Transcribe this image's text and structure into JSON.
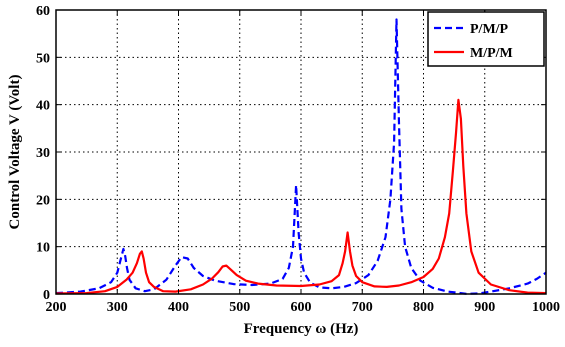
{
  "chart_data": {
    "type": "line",
    "title": "",
    "xlabel": "Frequency ω  (Hz)",
    "ylabel": "Control Voltage  V  (Volt)",
    "xlim": [
      200,
      1000
    ],
    "ylim": [
      0,
      60
    ],
    "xticks": [
      200,
      300,
      400,
      500,
      600,
      700,
      800,
      900,
      1000
    ],
    "yticks": [
      0,
      10,
      20,
      30,
      40,
      50,
      60
    ],
    "grid": true,
    "legend_position": "top-right",
    "series": [
      {
        "name": "P/M/P",
        "color": "#0000ff",
        "style": "dashed",
        "x": [
          200,
          240,
          270,
          290,
          300,
          305,
          310,
          313,
          316,
          320,
          330,
          345,
          360,
          380,
          395,
          405,
          415,
          425,
          440,
          460,
          490,
          520,
          550,
          570,
          580,
          587,
          592,
          596,
          600,
          605,
          615,
          630,
          650,
          670,
          690,
          710,
          725,
          738,
          746,
          752,
          756,
          760,
          764,
          770,
          780,
          795,
          815,
          840,
          870,
          890,
          910,
          940,
          970,
          985,
          1000
        ],
        "y": [
          0.2,
          0.5,
          1.2,
          2.5,
          4.5,
          7,
          9.5,
          8,
          5.5,
          3,
          1.2,
          0.6,
          1,
          3,
          6,
          7.8,
          7.5,
          5.5,
          3.8,
          2.8,
          2.1,
          1.9,
          2.2,
          3.2,
          5.5,
          10,
          23,
          13,
          7.5,
          4.5,
          2.4,
          1.4,
          1.2,
          1.5,
          2.3,
          4,
          7,
          12,
          20,
          32,
          58,
          36,
          18,
          10,
          5.5,
          2.8,
          1.3,
          0.5,
          0.05,
          0.1,
          0.5,
          1.2,
          2.2,
          3.2,
          4.5
        ]
      },
      {
        "name": "M/P/M",
        "color": "#ff0000",
        "style": "solid",
        "x": [
          200,
          250,
          280,
          300,
          315,
          325,
          332,
          337,
          340,
          343,
          347,
          352,
          360,
          375,
          395,
          420,
          440,
          455,
          465,
          472,
          478,
          485,
          495,
          510,
          530,
          560,
          600,
          630,
          650,
          662,
          668,
          672,
          676,
          680,
          684,
          690,
          700,
          720,
          740,
          760,
          780,
          800,
          815,
          825,
          835,
          842,
          848,
          853,
          857,
          861,
          865,
          870,
          878,
          890,
          910,
          940,
          970,
          1000
        ],
        "y": [
          0.1,
          0.2,
          0.6,
          1.5,
          3,
          4.5,
          6.5,
          8.5,
          9,
          7.5,
          4.5,
          2.5,
          1.5,
          0.6,
          0.5,
          1,
          2,
          3.3,
          4.6,
          5.8,
          6,
          5.2,
          4,
          2.8,
          2.2,
          1.8,
          1.7,
          2,
          2.7,
          4,
          6.5,
          9,
          13,
          9,
          6,
          3.8,
          2.5,
          1.6,
          1.5,
          1.8,
          2.5,
          3.6,
          5.3,
          7.5,
          12,
          17,
          26,
          34,
          41,
          37,
          27,
          17,
          9,
          4.5,
          2,
          0.8,
          0.3,
          0.2
        ]
      }
    ]
  }
}
